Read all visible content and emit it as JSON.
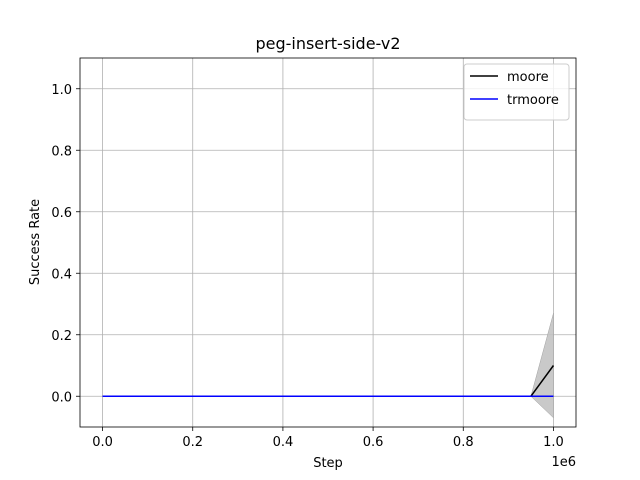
{
  "chart_data": {
    "type": "line",
    "title": "peg-insert-side-v2",
    "xlabel": "Step",
    "ylabel": "Success Rate",
    "x_offset_label": "1e6",
    "xlim": [
      -0.05,
      1.05
    ],
    "ylim": [
      -0.1,
      1.1
    ],
    "x_ticks": [
      0.0,
      0.2,
      0.4,
      0.6,
      0.8,
      1.0
    ],
    "x_tick_labels": [
      "0.0",
      "0.2",
      "0.4",
      "0.6",
      "0.8",
      "1.0"
    ],
    "y_ticks": [
      0.0,
      0.2,
      0.4,
      0.6,
      0.8,
      1.0
    ],
    "y_tick_labels": [
      "0.0",
      "0.2",
      "0.4",
      "0.6",
      "0.8",
      "1.0"
    ],
    "grid": true,
    "legend_position": "top-right",
    "series": [
      {
        "name": "moore",
        "color": "#000000",
        "x": [
          0.0,
          0.95,
          1.0
        ],
        "y": [
          0.0,
          0.0,
          0.1
        ],
        "band_lower": [
          0.0,
          0.0,
          -0.07
        ],
        "band_upper": [
          0.0,
          0.0,
          0.27
        ],
        "band_color": "#bfbfbf"
      },
      {
        "name": "trmoore",
        "color": "#0000ff",
        "x": [
          0.0,
          1.0
        ],
        "y": [
          0.0,
          0.0
        ]
      }
    ]
  }
}
